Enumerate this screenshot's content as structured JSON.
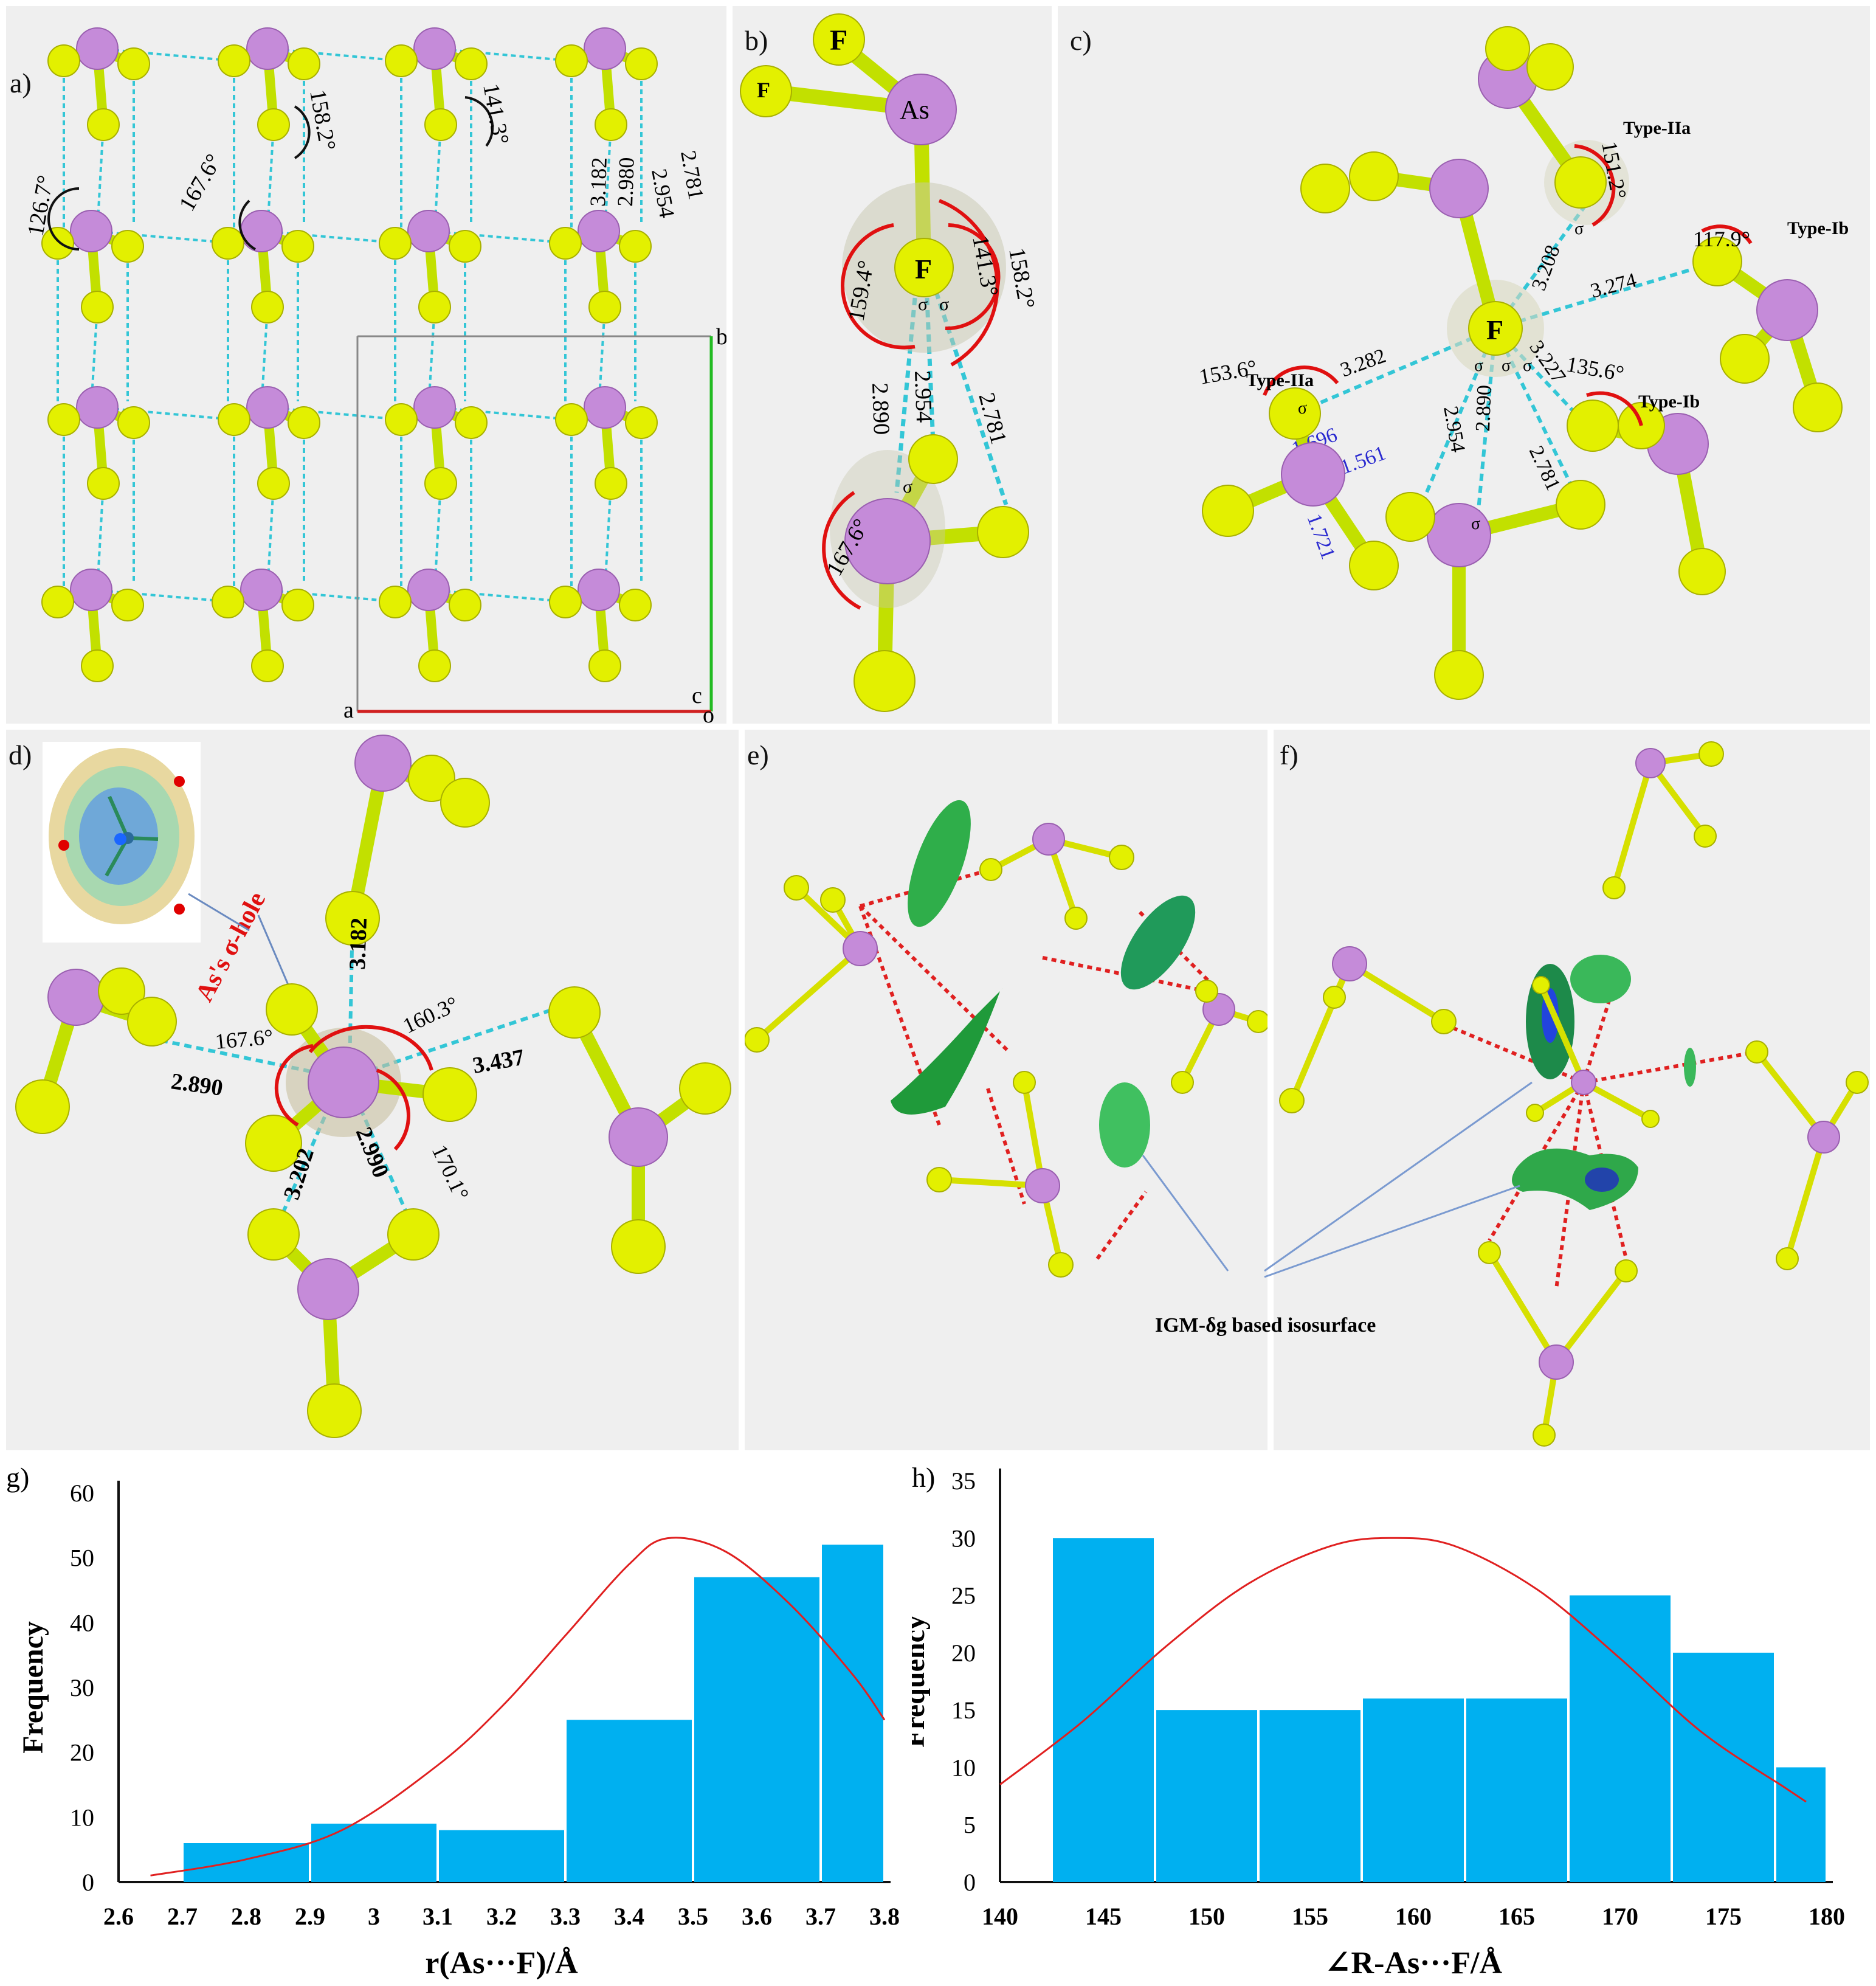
{
  "panels": {
    "a": {
      "label": "a)",
      "angles": [
        "126.7°",
        "167.6°",
        "158.2°",
        "141.3°"
      ],
      "distances": [
        "3.182",
        "2.980",
        "2.954",
        "2.781"
      ],
      "axes": {
        "a": "a",
        "b": "b",
        "c": "c",
        "o": "o"
      }
    },
    "b": {
      "label": "b)",
      "atoms": {
        "f1": "F",
        "f2": "F",
        "as": "As",
        "fc": "F"
      },
      "angles": [
        "159.4°",
        "141.3°",
        "158.2°",
        "167.6°"
      ],
      "distances": [
        "2.890",
        "2.954",
        "2.781"
      ],
      "sigma": "σ"
    },
    "c": {
      "label": "c)",
      "center": "F",
      "angles": [
        "151.2°",
        "117.9°",
        "153.6°",
        "135.6°"
      ],
      "types": [
        "Type-IIa",
        "Type-Ib",
        "Type-IIa",
        "Type-Ib"
      ],
      "distances": [
        "3.208",
        "3.274",
        "3.282",
        "3.227",
        "2.954",
        "2.890",
        "2.781"
      ],
      "bonds": [
        "1.696",
        "1.561",
        "1.721"
      ],
      "sigma": "σ"
    },
    "d": {
      "label": "d)",
      "sigma_hole": "As's σ-hole",
      "angles": [
        "167.6°",
        "160.3°",
        "170.1°"
      ],
      "distances": [
        "3.182",
        "2.890",
        "3.437",
        "3.202",
        "2.990"
      ]
    },
    "e": {
      "label": "e)"
    },
    "f": {
      "label": "f)"
    },
    "isosurface_note": "IGM-δg based isosurface"
  },
  "colors": {
    "arsenic": "#c58bd9",
    "fluorine": "#e3f000",
    "contact_cyan": "#33c6d6",
    "contact_red": "#e02020",
    "arc_red": "#e01010",
    "bar": "#00b0f0",
    "curve": "#e02020",
    "bond_blue": "#2a2ad0"
  },
  "chart_data": [
    {
      "panel_label": "g)",
      "type": "bar",
      "ylabel": "Frequency",
      "xlabel": "r(As···F)/Å",
      "xlim": [
        2.6,
        3.8
      ],
      "ylim": [
        0,
        60
      ],
      "xticks": [
        "2.6",
        "2.7",
        "2.8",
        "2.9",
        "3",
        "3.1",
        "3.2",
        "3.3",
        "3.4",
        "3.5",
        "3.6",
        "3.7",
        "3.8"
      ],
      "yticks": [
        "0",
        "10",
        "20",
        "30",
        "40",
        "50",
        "60"
      ],
      "bins": [
        [
          2.7,
          2.9
        ],
        [
          2.9,
          3.1
        ],
        [
          3.1,
          3.3
        ],
        [
          3.3,
          3.5
        ],
        [
          3.5,
          3.7
        ],
        [
          3.7,
          3.8
        ]
      ],
      "values": [
        6,
        9,
        8,
        25,
        47,
        52
      ],
      "curve": {
        "x": [
          2.65,
          2.8,
          2.95,
          3.1,
          3.2,
          3.3,
          3.4,
          3.46,
          3.55,
          3.65,
          3.75,
          3.8
        ],
        "y": [
          1,
          3.5,
          8,
          18,
          27,
          38,
          49,
          53,
          51,
          43,
          32,
          25
        ]
      }
    },
    {
      "panel_label": "h)",
      "type": "bar",
      "ylabel": "Frequency",
      "xlabel": "∠R-As···F/Å",
      "xlim": [
        140,
        180
      ],
      "ylim": [
        0,
        35
      ],
      "xticks": [
        "140",
        "145",
        "150",
        "155",
        "160",
        "165",
        "170",
        "175",
        "180"
      ],
      "yticks": [
        "0",
        "5",
        "10",
        "15",
        "20",
        "25",
        "30",
        "35"
      ],
      "bins": [
        [
          142.5,
          147.5
        ],
        [
          147.5,
          152.5
        ],
        [
          152.5,
          157.5
        ],
        [
          157.5,
          162.5
        ],
        [
          162.5,
          167.5
        ],
        [
          167.5,
          172.5
        ],
        [
          172.5,
          177.5
        ],
        [
          177.5,
          180
        ]
      ],
      "values": [
        30,
        15,
        15,
        16,
        16,
        25,
        20,
        10
      ],
      "curve": {
        "x": [
          140,
          144,
          148,
          152,
          156,
          159,
          162,
          166,
          170,
          174,
          178,
          179
        ],
        "y": [
          8.5,
          14,
          20.5,
          26,
          29.3,
          30,
          29.3,
          25.5,
          19.5,
          13,
          8.2,
          7
        ]
      }
    }
  ]
}
